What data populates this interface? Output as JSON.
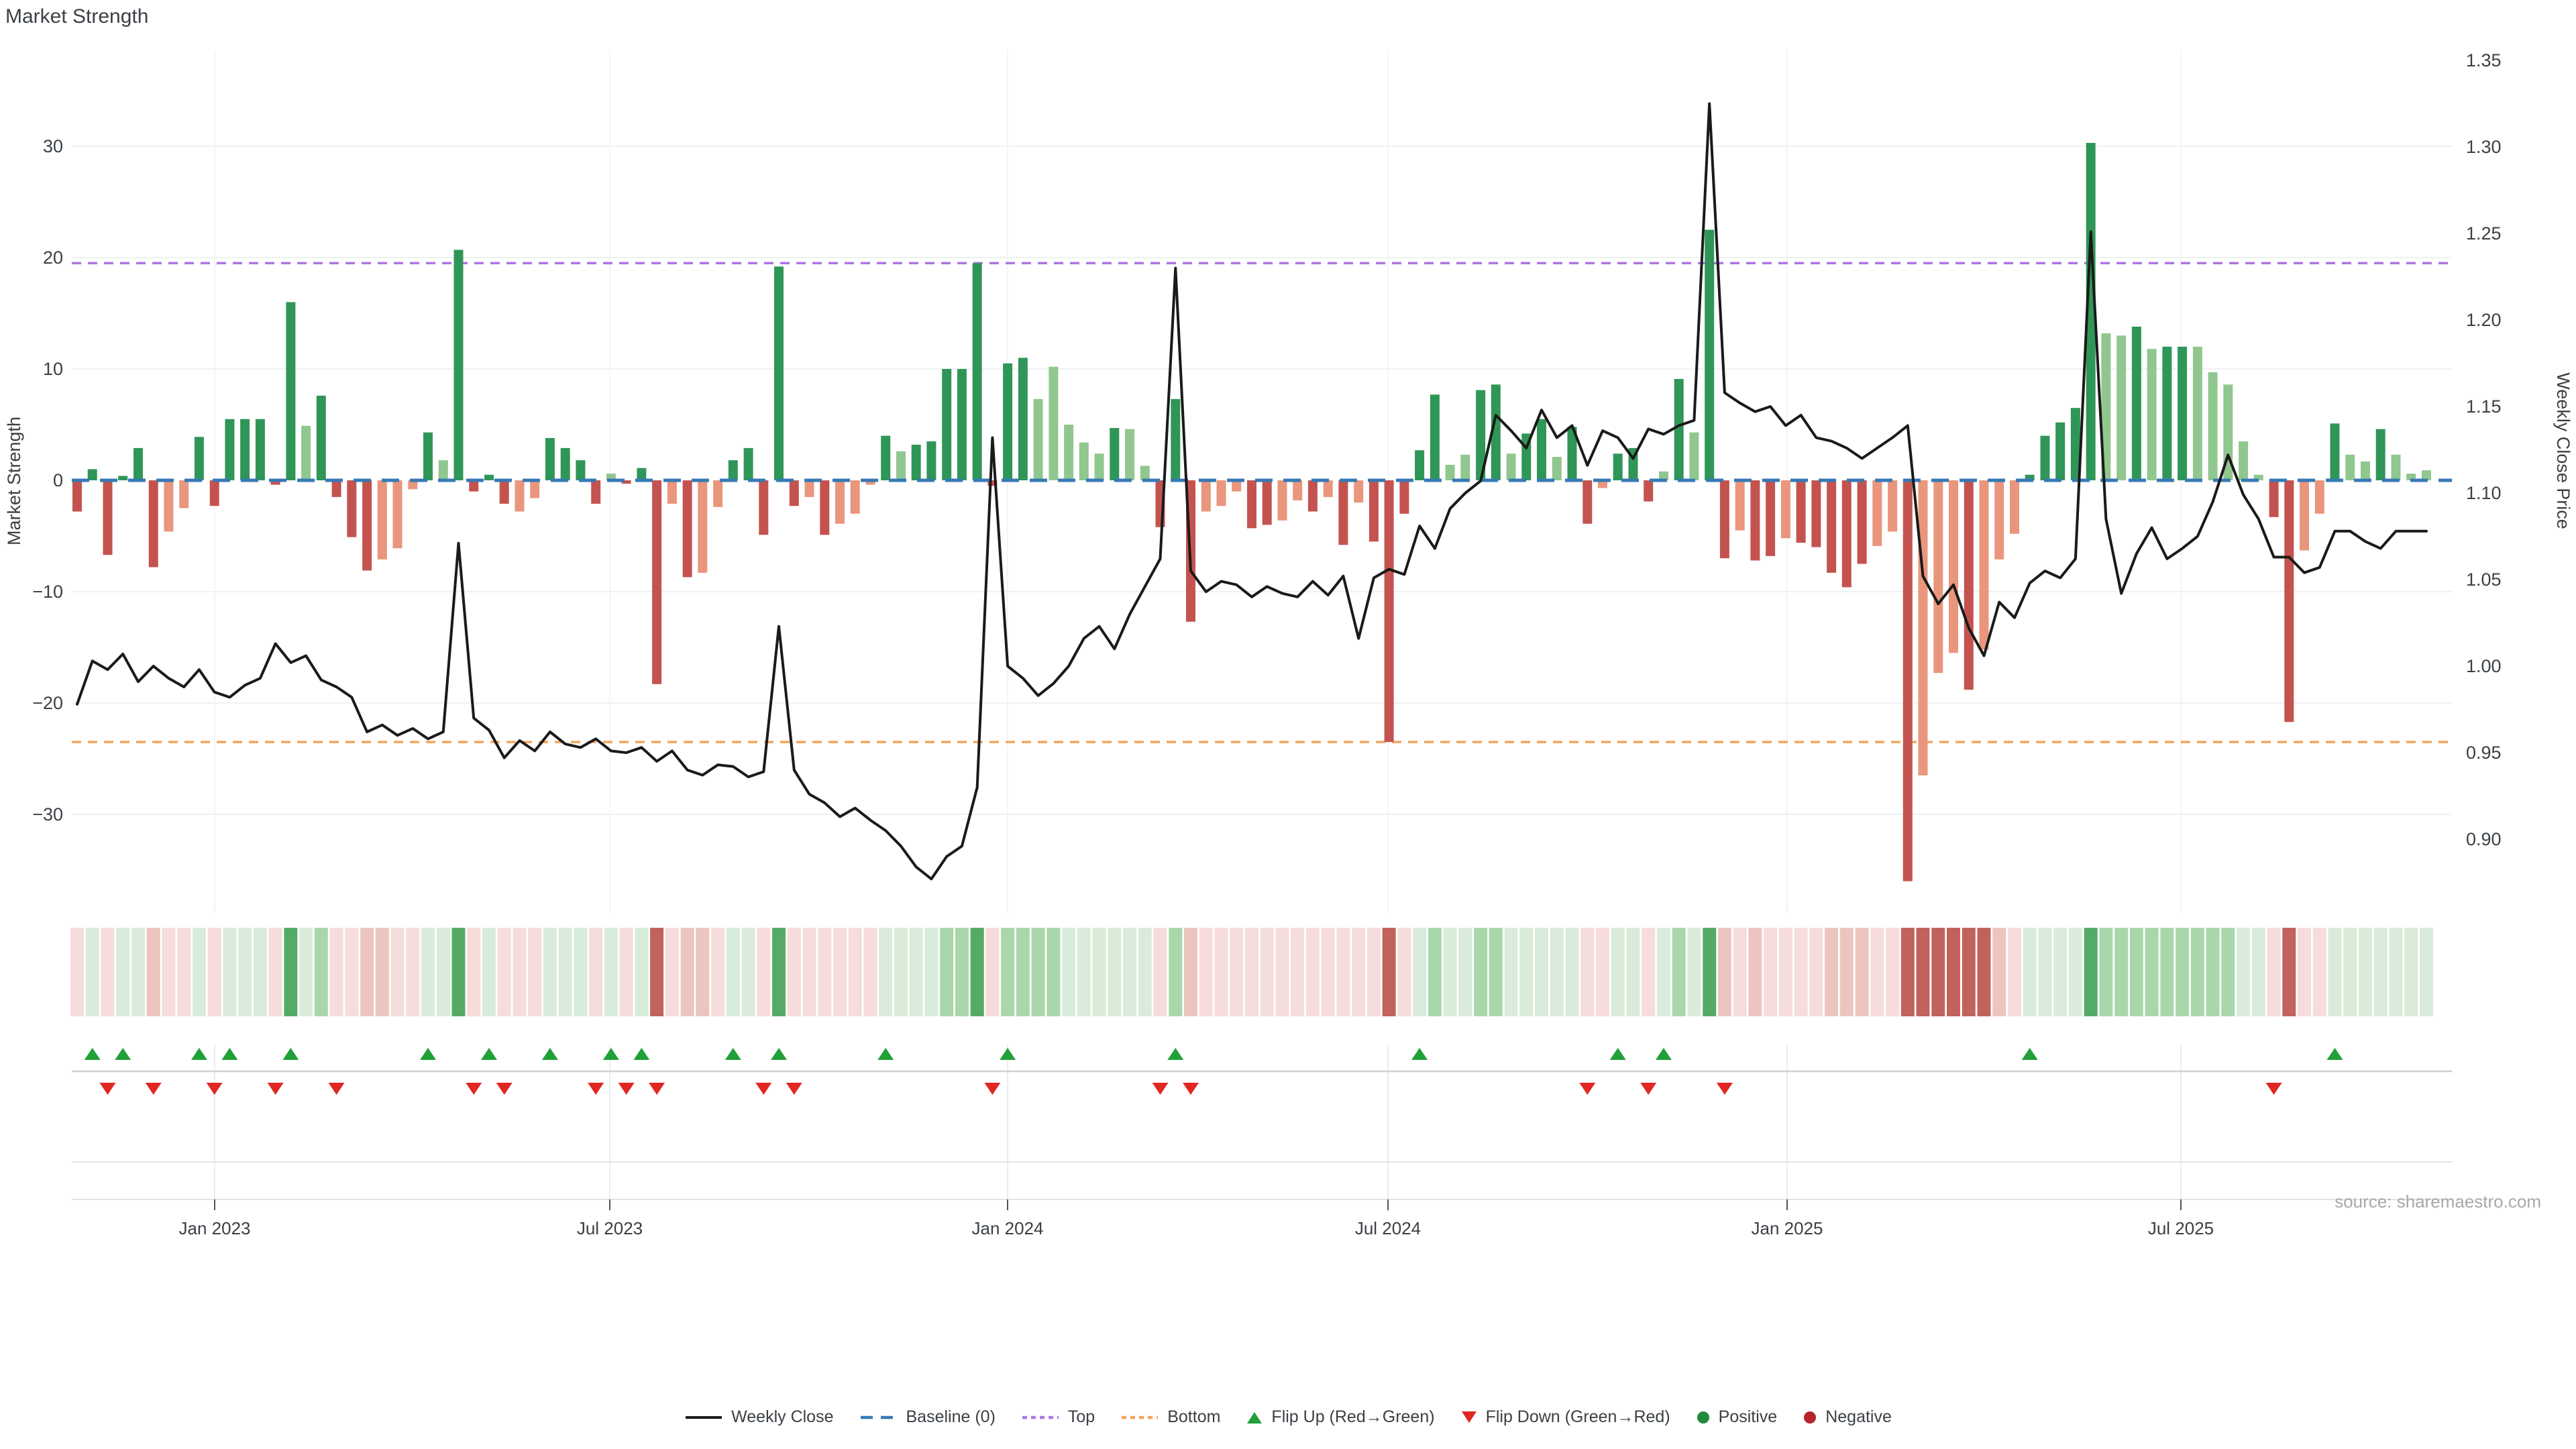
{
  "title": "Market Strength",
  "source": "source: sharemaestro.com",
  "left_axis": {
    "title": "Market Strength",
    "ticks": [
      30,
      20,
      10,
      0,
      -10,
      -20,
      -30
    ]
  },
  "right_axis": {
    "title": "Weekly Close Price",
    "ticks": [
      1.35,
      1.3,
      1.25,
      1.2,
      1.15,
      1.1,
      1.05,
      1.0,
      0.95,
      0.9
    ]
  },
  "x_axis": {
    "labels": [
      "Jan 2023",
      "Jul 2023",
      "Jan 2024",
      "Jul 2024",
      "Jan 2025",
      "Jul 2025"
    ],
    "tick_x": [
      320,
      909,
      1502,
      2069,
      2664,
      3251
    ]
  },
  "legend": [
    {
      "label": "Weekly Close",
      "type": "line",
      "color": "#1a1a1a",
      "name": "legend-weekly-close"
    },
    {
      "label": "Baseline (0)",
      "type": "dash",
      "color": "#3779b5",
      "name": "legend-baseline"
    },
    {
      "label": "Top",
      "type": "dots",
      "color": "#ab77e2",
      "name": "legend-top"
    },
    {
      "label": "Bottom",
      "type": "dots",
      "color": "#f3a55f",
      "name": "legend-bottom"
    },
    {
      "label": "Flip Up (Red→Green)",
      "type": "tri-up",
      "color": "#21a038",
      "name": "legend-flip-up"
    },
    {
      "label": "Flip Down (Green→Red)",
      "type": "tri-down",
      "color": "#e02722",
      "name": "legend-flip-down"
    },
    {
      "label": "Positive",
      "type": "dot",
      "color": "#1f8b3e",
      "name": "legend-positive"
    },
    {
      "label": "Negative",
      "type": "dot",
      "color": "#b6242b",
      "name": "legend-negative"
    }
  ],
  "colors": {
    "dark_green": "#2f9658",
    "light_green": "#90c78f",
    "dark_red": "#c4534f",
    "salmon": "#e9967d",
    "line": "#1a1a1a",
    "baseline_blue": "#3779b5",
    "top_purple": "#ab77e2",
    "bottom_orange": "#f3a55f",
    "flip_up_green": "#21a038",
    "flip_down_red": "#e02722",
    "heat_strong_green": "#55ab66",
    "heat_mid_green": "#a8d7ab",
    "heat_pale_green": "#d9ecda",
    "heat_strong_red": "#c2625c",
    "heat_mid_red": "#ecc5c1",
    "heat_pale_red": "#f6dcdb",
    "grid": "#eef1f4",
    "grid_vert": "#f2f4f6",
    "axis_text": "#3b4045",
    "muted": "#a8a8a8",
    "band_line": "#e3e3e3",
    "marker_axis": "#cfcfcf"
  },
  "chart_data": {
    "type": "composite",
    "description": "Weekly market-strength bars (left axis) with weekly close price line (right axis), heatmap strip and flip markers",
    "x_unit": "week",
    "n_weeks": 155,
    "left_range": [
      -38.8,
      38.6
    ],
    "right_range": [
      0.88,
      1.35
    ],
    "reference_lines": {
      "baseline": 0,
      "top": 19.5,
      "bottom": -23.5
    },
    "strength_values": [
      -2.8,
      1.0,
      -6.7,
      0.4,
      2.9,
      -7.8,
      -4.6,
      -2.5,
      3.9,
      -2.3,
      5.5,
      5.5,
      5.5,
      -0.4,
      16.0,
      4.9,
      7.6,
      -1.5,
      -5.1,
      -8.1,
      -7.1,
      -6.1,
      -0.8,
      4.3,
      1.8,
      20.7,
      -1.0,
      0.5,
      -2.1,
      -2.8,
      -1.6,
      3.8,
      2.9,
      1.8,
      -2.1,
      0.6,
      -0.3,
      1.1,
      -18.3,
      -2.1,
      -8.7,
      -8.3,
      -2.4,
      1.8,
      2.9,
      -4.9,
      19.2,
      -2.3,
      -1.5,
      -4.9,
      -3.9,
      -3.0,
      -0.4,
      4.0,
      2.6,
      3.2,
      3.5,
      10.0,
      10.0,
      19.5,
      -0.5,
      10.5,
      11.0,
      7.3,
      10.2,
      5.0,
      3.4,
      2.4,
      4.7,
      4.6,
      1.3,
      -4.2,
      7.3,
      -12.7,
      -2.8,
      -2.3,
      -1.0,
      -4.3,
      -4.0,
      -3.6,
      -1.8,
      -2.8,
      -1.5,
      -5.8,
      -2.0,
      -5.5,
      -23.5,
      -3.0,
      2.7,
      7.7,
      1.4,
      2.3,
      8.1,
      8.6,
      2.4,
      4.2,
      5.5,
      2.1,
      4.8,
      -3.9,
      -0.7,
      2.4,
      2.9,
      -1.9,
      0.8,
      9.1,
      4.3,
      22.5,
      -7.0,
      -4.5,
      -7.2,
      -6.8,
      -5.2,
      -5.6,
      -6.0,
      -8.3,
      -9.6,
      -7.5,
      -5.9,
      -4.6,
      -36.0,
      -26.5,
      -17.3,
      -15.5,
      -18.8,
      -15.2,
      -7.1,
      -4.8,
      0.5,
      4.0,
      5.2,
      6.5,
      30.3,
      13.2,
      13.0,
      13.8,
      11.8,
      12.0,
      12.0,
      12.0,
      9.7,
      8.6,
      3.5,
      0.5,
      -3.3,
      -21.7,
      -6.3,
      -3.0,
      5.1,
      2.3,
      1.7,
      4.6,
      2.3,
      0.6,
      0.9
    ],
    "strength_shades": [
      "dr",
      "dg",
      "dr",
      "dg",
      "dg",
      "dr",
      "sr",
      "sr",
      "dg",
      "dr",
      "dg",
      "dg",
      "dg",
      "dr",
      "dg",
      "lg",
      "dg",
      "dr",
      "dr",
      "dr",
      "sr",
      "sr",
      "sr",
      "dg",
      "lg",
      "dg",
      "dr",
      "dg",
      "dr",
      "sr",
      "sr",
      "dg",
      "dg",
      "dg",
      "dr",
      "lg",
      "dr",
      "dg",
      "dr",
      "sr",
      "dr",
      "sr",
      "sr",
      "dg",
      "dg",
      "dr",
      "dg",
      "dr",
      "sr",
      "dr",
      "sr",
      "sr",
      "sr",
      "dg",
      "lg",
      "dg",
      "dg",
      "dg",
      "dg",
      "dg",
      "dr",
      "dg",
      "dg",
      "lg",
      "lg",
      "lg",
      "lg",
      "lg",
      "dg",
      "lg",
      "lg",
      "dr",
      "dg",
      "dr",
      "sr",
      "sr",
      "sr",
      "dr",
      "dr",
      "sr",
      "sr",
      "dr",
      "sr",
      "dr",
      "sr",
      "dr",
      "dr",
      "dr",
      "dg",
      "dg",
      "lg",
      "lg",
      "dg",
      "dg",
      "lg",
      "dg",
      "dg",
      "lg",
      "dg",
      "dr",
      "sr",
      "dg",
      "dg",
      "dr",
      "lg",
      "dg",
      "lg",
      "dg",
      "dr",
      "sr",
      "dr",
      "dr",
      "sr",
      "dr",
      "dr",
      "dr",
      "dr",
      "dr",
      "sr",
      "sr",
      "dr",
      "sr",
      "sr",
      "sr",
      "dr",
      "sr",
      "sr",
      "sr",
      "dg",
      "dg",
      "dg",
      "dg",
      "dg",
      "lg",
      "lg",
      "dg",
      "lg",
      "dg",
      "dg",
      "lg",
      "lg",
      "lg",
      "lg",
      "lg",
      "dr",
      "dr",
      "sr",
      "sr",
      "dg",
      "lg",
      "lg",
      "dg",
      "lg",
      "lg",
      "lg"
    ],
    "weekly_close": [
      0.978,
      1.003,
      0.998,
      1.007,
      0.991,
      1.0,
      0.993,
      0.988,
      0.998,
      0.985,
      0.982,
      0.989,
      0.993,
      1.013,
      1.002,
      1.006,
      0.992,
      0.988,
      0.982,
      0.962,
      0.966,
      0.96,
      0.964,
      0.958,
      0.962,
      1.071,
      0.97,
      0.963,
      0.947,
      0.957,
      0.951,
      0.962,
      0.955,
      0.953,
      0.958,
      0.951,
      0.95,
      0.953,
      0.945,
      0.951,
      0.94,
      0.937,
      0.943,
      0.942,
      0.936,
      0.939,
      1.023,
      0.94,
      0.926,
      0.921,
      0.913,
      0.918,
      0.911,
      0.905,
      0.896,
      0.884,
      0.877,
      0.89,
      0.896,
      0.93,
      1.132,
      1.0,
      0.993,
      0.983,
      0.99,
      1.0,
      1.016,
      1.023,
      1.01,
      1.03,
      1.046,
      1.062,
      1.23,
      1.055,
      1.043,
      1.049,
      1.047,
      1.04,
      1.046,
      1.042,
      1.04,
      1.049,
      1.041,
      1.052,
      1.016,
      1.051,
      1.056,
      1.053,
      1.081,
      1.068,
      1.091,
      1.1,
      1.107,
      1.145,
      1.136,
      1.126,
      1.148,
      1.132,
      1.139,
      1.116,
      1.136,
      1.132,
      1.12,
      1.137,
      1.134,
      1.139,
      1.142,
      1.325,
      1.158,
      1.152,
      1.147,
      1.15,
      1.139,
      1.145,
      1.132,
      1.13,
      1.126,
      1.12,
      1.126,
      1.132,
      1.139,
      1.052,
      1.036,
      1.047,
      1.022,
      1.006,
      1.037,
      1.028,
      1.048,
      1.055,
      1.051,
      1.062,
      1.251,
      1.085,
      1.042,
      1.065,
      1.08,
      1.062,
      1.068,
      1.075,
      1.095,
      1.122,
      1.099,
      1.085,
      1.063,
      1.063,
      1.054,
      1.057,
      1.078,
      1.078,
      1.072,
      1.068,
      1.078,
      1.078,
      1.078
    ],
    "flip_up_weeks": [
      1,
      3,
      8,
      10,
      14,
      23,
      27,
      31,
      35,
      37,
      43,
      46,
      53,
      61,
      72,
      88,
      101,
      104,
      128,
      148
    ],
    "flip_down_weeks": [
      2,
      5,
      9,
      13,
      17,
      26,
      28,
      34,
      36,
      38,
      45,
      47,
      60,
      71,
      73,
      99,
      103,
      108,
      144
    ]
  }
}
